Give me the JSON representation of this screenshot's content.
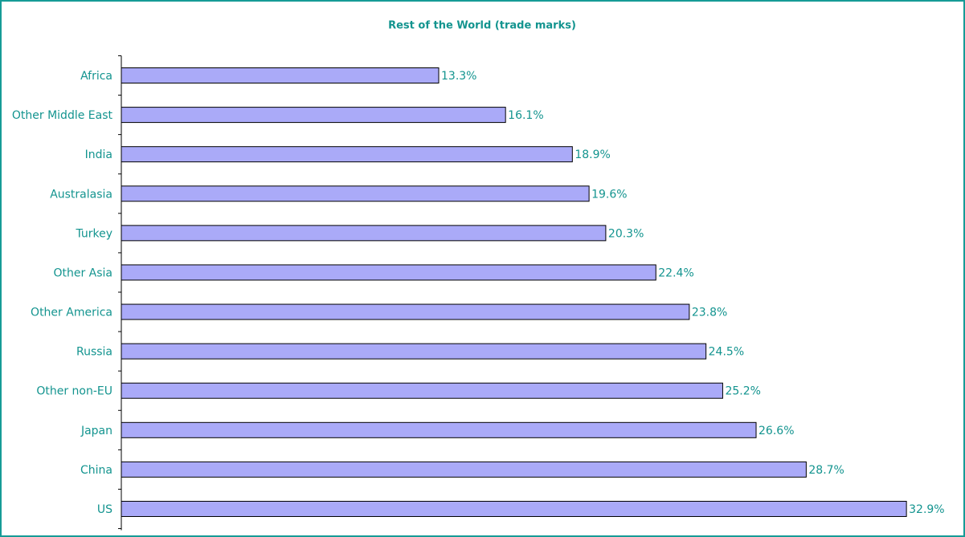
{
  "chart_data": {
    "type": "bar",
    "orientation": "horizontal",
    "title": "Rest of the World (trade marks)",
    "categories": [
      "Africa",
      "Other Middle East",
      "India",
      "Australasia",
      "Turkey",
      "Other Asia",
      "Other America",
      "Russia",
      "Other non-EU",
      "Japan",
      "China",
      "US"
    ],
    "values": [
      13.3,
      16.1,
      18.9,
      19.6,
      20.3,
      22.4,
      23.8,
      24.5,
      25.2,
      26.6,
      28.7,
      32.9
    ],
    "value_labels": [
      "13.3%",
      "16.1%",
      "18.9%",
      "19.6%",
      "20.3%",
      "22.4%",
      "23.8%",
      "24.5%",
      "25.2%",
      "26.6%",
      "28.7%",
      "32.9%"
    ],
    "color": "#aaaaf8"
  }
}
